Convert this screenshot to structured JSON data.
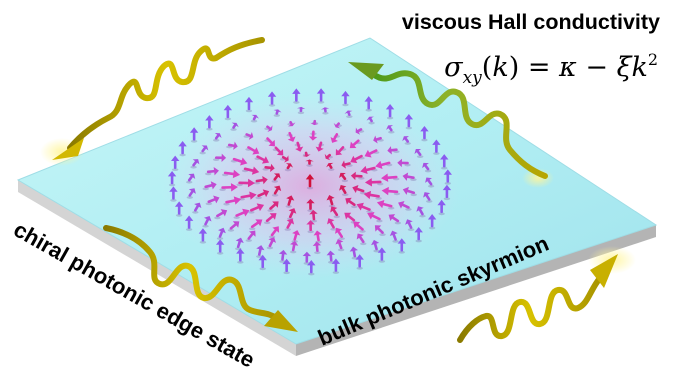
{
  "labels": {
    "title": "viscous Hall conductivity",
    "edge": "chiral photonic edge state",
    "bulk": "bulk photonic skyrmion"
  },
  "formula": {
    "sigma": "σ",
    "sub": "xy",
    "open": "(",
    "k1": "k",
    "close": ")",
    "eq": " = ",
    "kappa": "κ",
    "minus": " − ",
    "xi": "ξ",
    "k2": "k",
    "sup": "2"
  },
  "colors": {
    "slab_top": "#b8f0f4",
    "slab_side": "#c9c9c9",
    "wave": "#c8b400",
    "wave_green": "#7fa820",
    "skyrmion_outer": "#8a5cf0",
    "skyrmion_mid": "#e040c0",
    "skyrmion_core": "#d0103a"
  },
  "skyrmion": {
    "rings": 7
  }
}
